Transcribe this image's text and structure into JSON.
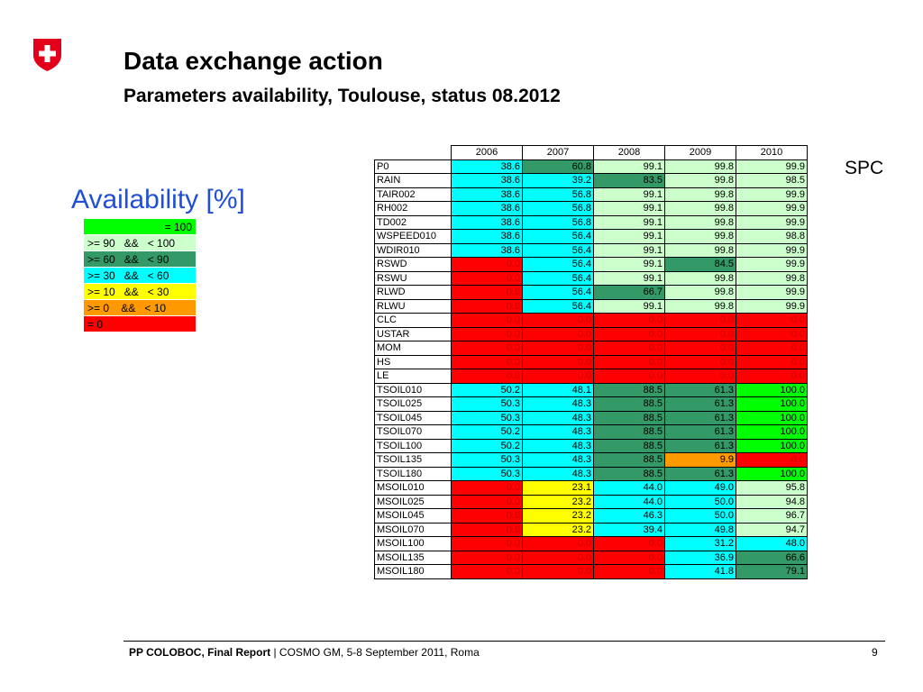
{
  "title": "Data exchange action",
  "subtitle": "Parameters availability, Toulouse, status 08.2012",
  "legend": {
    "heading": "Availability [%]",
    "items": [
      {
        "label": "= 100",
        "color": "#00ff00",
        "align": "right"
      },
      {
        "label": ">= 90   &&   < 100",
        "color": "#ccffcc",
        "align": "left"
      },
      {
        "label": ">= 60   &&   < 90",
        "color": "#339966",
        "align": "left"
      },
      {
        "label": ">= 30   &&   < 60",
        "color": "#00ffff",
        "align": "left"
      },
      {
        "label": ">= 10   &&   < 30",
        "color": "#ffff00",
        "align": "left"
      },
      {
        "label": ">= 0    &&   < 10",
        "color": "#ff9900",
        "align": "left"
      },
      {
        "label": "= 0",
        "color": "#ff0000",
        "align": "left"
      }
    ]
  },
  "spc_label": "SPC",
  "table": {
    "years": [
      "2006",
      "2007",
      "2008",
      "2009",
      "2010"
    ],
    "rows": [
      {
        "name": "P0",
        "values": [
          "38.6",
          "60.8",
          "99.1",
          "99.8",
          "99.9"
        ]
      },
      {
        "name": "RAIN",
        "values": [
          "38.6",
          "39.2",
          "83.5",
          "99.8",
          "98.5"
        ]
      },
      {
        "name": "TAIR002",
        "values": [
          "38.6",
          "56.8",
          "99.1",
          "99.8",
          "99.9"
        ]
      },
      {
        "name": "RH002",
        "values": [
          "38.6",
          "56.8",
          "99.1",
          "99.8",
          "99.9"
        ]
      },
      {
        "name": "TD002",
        "values": [
          "38.6",
          "56.8",
          "99.1",
          "99.8",
          "99.9"
        ]
      },
      {
        "name": "WSPEED010",
        "values": [
          "38.6",
          "56.4",
          "99.1",
          "99.8",
          "98.8"
        ]
      },
      {
        "name": "WDIR010",
        "values": [
          "38.6",
          "56.4",
          "99.1",
          "99.8",
          "99.9"
        ]
      },
      {
        "name": "RSWD",
        "values": [
          "0.0",
          "56.4",
          "99.1",
          "84.5",
          "99.9"
        ]
      },
      {
        "name": "RSWU",
        "values": [
          "0.0",
          "56.4",
          "99.1",
          "99.8",
          "99.8"
        ]
      },
      {
        "name": "RLWD",
        "values": [
          "0.0",
          "56.4",
          "66.7",
          "99.8",
          "99.9"
        ]
      },
      {
        "name": "RLWU",
        "values": [
          "0.0",
          "56.4",
          "99.1",
          "99.8",
          "99.9"
        ]
      },
      {
        "name": "CLC",
        "values": [
          "0.0",
          "0.0",
          "0.0",
          "0.0",
          "0.0"
        ]
      },
      {
        "name": "USTAR",
        "values": [
          "0.0",
          "0.0",
          "0.0",
          "0.0",
          "0.0"
        ]
      },
      {
        "name": "MOM",
        "values": [
          "0.0",
          "0.0",
          "0.0",
          "0.0",
          "0.0"
        ]
      },
      {
        "name": "HS",
        "values": [
          "0.0",
          "0.0",
          "0.0",
          "0.0",
          "0.0"
        ]
      },
      {
        "name": "LE",
        "values": [
          "0.0",
          "0.0",
          "0.0",
          "0.0",
          "0.0"
        ]
      },
      {
        "name": "TSOIL010",
        "values": [
          "50.2",
          "48.1",
          "88.5",
          "61.3",
          "100.0"
        ]
      },
      {
        "name": "TSOIL025",
        "values": [
          "50.3",
          "48.3",
          "88.5",
          "61.3",
          "100.0"
        ]
      },
      {
        "name": "TSOIL045",
        "values": [
          "50.3",
          "48.3",
          "88.5",
          "61.3",
          "100.0"
        ]
      },
      {
        "name": "TSOIL070",
        "values": [
          "50.2",
          "48.3",
          "88.5",
          "61.3",
          "100.0"
        ]
      },
      {
        "name": "TSOIL100",
        "values": [
          "50.2",
          "48.3",
          "88.5",
          "61.3",
          "100.0"
        ]
      },
      {
        "name": "TSOIL135",
        "values": [
          "50.3",
          "48.3",
          "88.5",
          "9.9",
          "0.0"
        ]
      },
      {
        "name": "TSOIL180",
        "values": [
          "50.3",
          "48.3",
          "88.5",
          "61.3",
          "100.0"
        ]
      },
      {
        "name": "MSOIL010",
        "values": [
          "0.0",
          "23.1",
          "44.0",
          "49.0",
          "95.8"
        ]
      },
      {
        "name": "MSOIL025",
        "values": [
          "0.0",
          "23.2",
          "44.0",
          "50.0",
          "94.8"
        ]
      },
      {
        "name": "MSOIL045",
        "values": [
          "0.0",
          "23.2",
          "46.3",
          "50.0",
          "96.7"
        ]
      },
      {
        "name": "MSOIL070",
        "values": [
          "0.0",
          "23.2",
          "39.4",
          "49.8",
          "94.7"
        ]
      },
      {
        "name": "MSOIL100",
        "values": [
          "0.0",
          "0.0",
          "0.0",
          "31.2",
          "48.0"
        ]
      },
      {
        "name": "MSOIL135",
        "values": [
          "0.0",
          "0.0",
          "0.0",
          "36.9",
          "66.6"
        ]
      },
      {
        "name": "MSOIL180",
        "values": [
          "0.0",
          "0.0",
          "0.0",
          "41.8",
          "79.1"
        ]
      }
    ]
  },
  "footer": {
    "bold": "PP COLOBOC, Final Report",
    "rest": " | COSMO GM, 5-8 September 2011, Roma",
    "page": "9"
  },
  "colors": {
    "heading_blue": "#1f4fd6",
    "logo_red": "#e2001a"
  },
  "icons": {
    "logo": "swiss-cross-shield-icon"
  }
}
